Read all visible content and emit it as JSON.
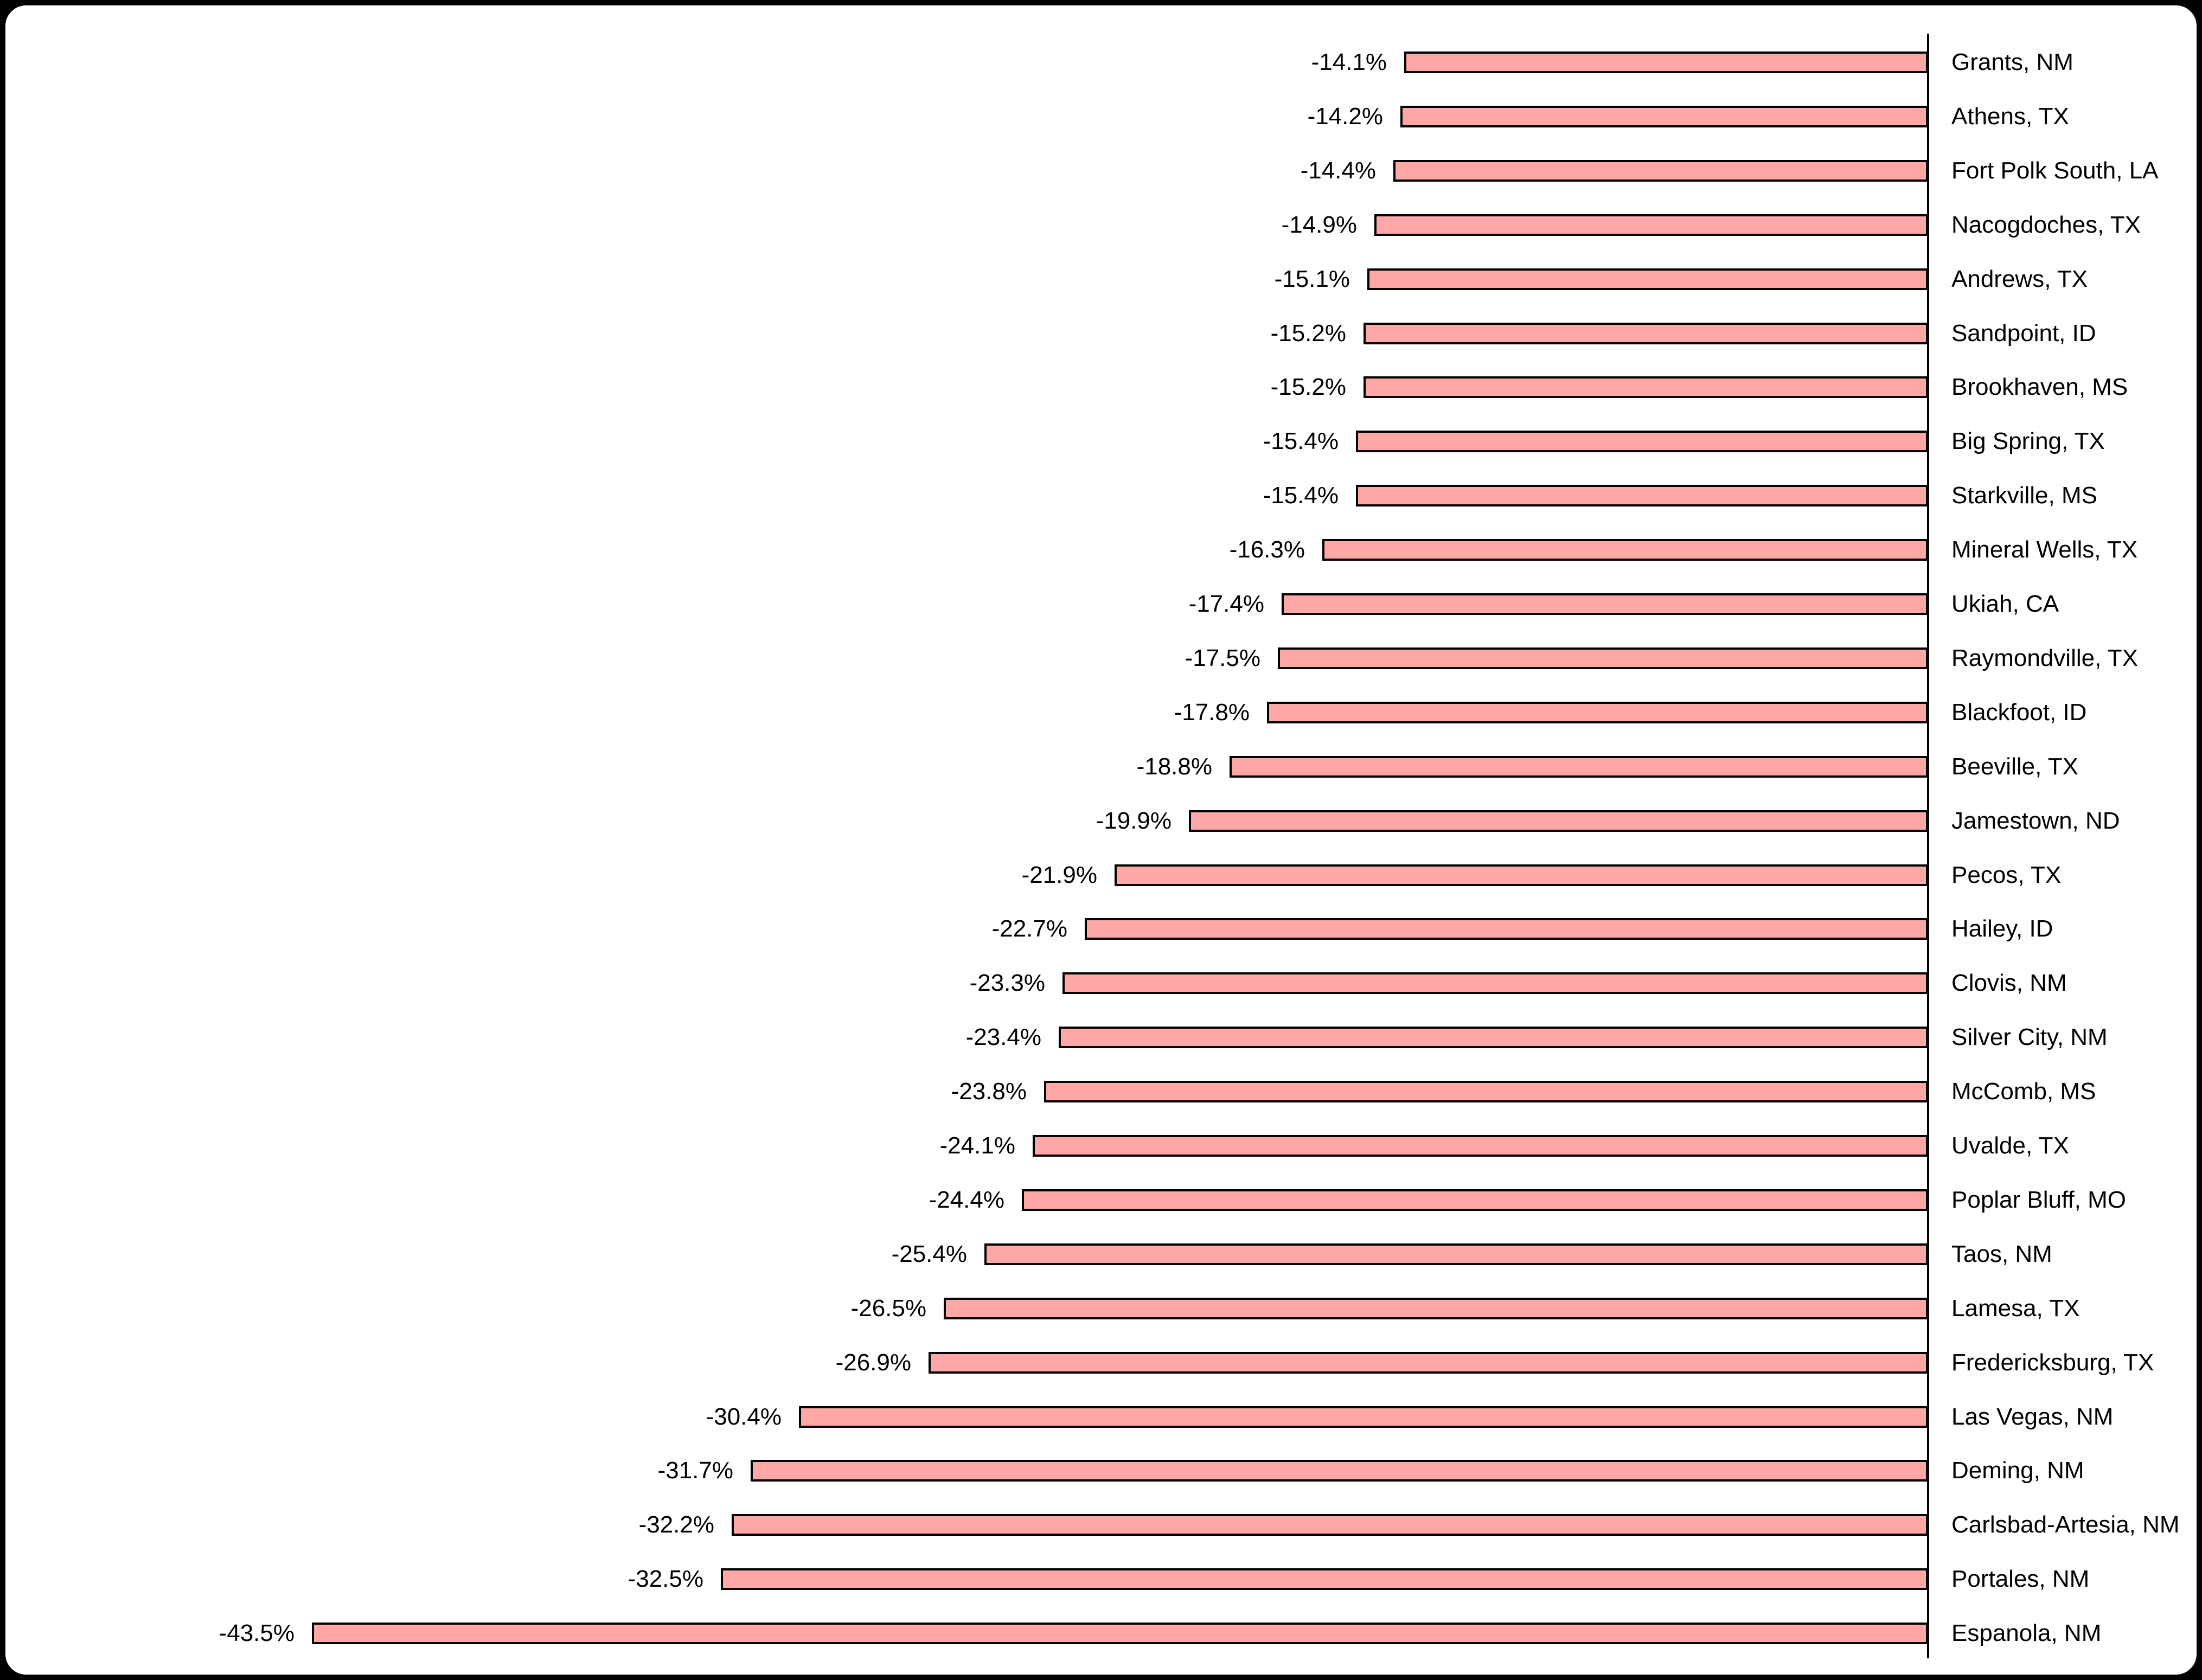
{
  "frame": {
    "background_color": "#000000",
    "panel_color": "#FFFFFF",
    "border_color": "#000000"
  },
  "chart_data": {
    "type": "bar",
    "orientation": "horizontal",
    "legend_position": "none",
    "grid": false,
    "value_axis": {
      "side": "right",
      "baseline": 0,
      "xlim": [
        -45,
        0
      ],
      "unit": "%"
    },
    "bar_style": {
      "fill_color": "#FFA7A7",
      "border_color": "#000000",
      "text_color": "#000000"
    },
    "points": [
      {
        "label": "Grants, NM",
        "value": -14.1,
        "value_label": "-14.1%"
      },
      {
        "label": "Athens, TX",
        "value": -14.2,
        "value_label": "-14.2%"
      },
      {
        "label": "Fort Polk South, LA",
        "value": -14.4,
        "value_label": "-14.4%"
      },
      {
        "label": "Nacogdoches, TX",
        "value": -14.9,
        "value_label": "-14.9%"
      },
      {
        "label": "Andrews, TX",
        "value": -15.1,
        "value_label": "-15.1%"
      },
      {
        "label": "Sandpoint, ID",
        "value": -15.2,
        "value_label": "-15.2%"
      },
      {
        "label": "Brookhaven, MS",
        "value": -15.2,
        "value_label": "-15.2%"
      },
      {
        "label": "Big Spring, TX",
        "value": -15.4,
        "value_label": "-15.4%"
      },
      {
        "label": "Starkville, MS",
        "value": -15.4,
        "value_label": "-15.4%"
      },
      {
        "label": "Mineral Wells, TX",
        "value": -16.3,
        "value_label": "-16.3%"
      },
      {
        "label": "Ukiah, CA",
        "value": -17.4,
        "value_label": "-17.4%"
      },
      {
        "label": "Raymondville, TX",
        "value": -17.5,
        "value_label": "-17.5%"
      },
      {
        "label": "Blackfoot, ID",
        "value": -17.8,
        "value_label": "-17.8%"
      },
      {
        "label": "Beeville, TX",
        "value": -18.8,
        "value_label": "-18.8%"
      },
      {
        "label": "Jamestown, ND",
        "value": -19.9,
        "value_label": "-19.9%"
      },
      {
        "label": "Pecos, TX",
        "value": -21.9,
        "value_label": "-21.9%"
      },
      {
        "label": "Hailey, ID",
        "value": -22.7,
        "value_label": "-22.7%"
      },
      {
        "label": "Clovis, NM",
        "value": -23.3,
        "value_label": "-23.3%"
      },
      {
        "label": "Silver City, NM",
        "value": -23.4,
        "value_label": "-23.4%"
      },
      {
        "label": "McComb, MS",
        "value": -23.8,
        "value_label": "-23.8%"
      },
      {
        "label": "Uvalde, TX",
        "value": -24.1,
        "value_label": "-24.1%"
      },
      {
        "label": "Poplar Bluff, MO",
        "value": -24.4,
        "value_label": "-24.4%"
      },
      {
        "label": "Taos, NM",
        "value": -25.4,
        "value_label": "-25.4%"
      },
      {
        "label": "Lamesa, TX",
        "value": -26.5,
        "value_label": "-26.5%"
      },
      {
        "label": "Fredericksburg, TX",
        "value": -26.9,
        "value_label": "-26.9%"
      },
      {
        "label": "Las Vegas, NM",
        "value": -30.4,
        "value_label": "-30.4%"
      },
      {
        "label": "Deming, NM",
        "value": -31.7,
        "value_label": "-31.7%"
      },
      {
        "label": "Carlsbad-Artesia, NM",
        "value": -32.2,
        "value_label": "-32.2%"
      },
      {
        "label": "Portales, NM",
        "value": -32.5,
        "value_label": "-32.5%"
      },
      {
        "label": "Espanola, NM",
        "value": -43.5,
        "value_label": "-43.5%"
      }
    ]
  }
}
